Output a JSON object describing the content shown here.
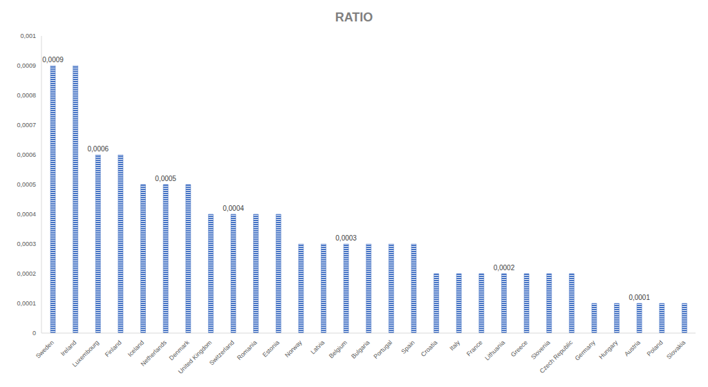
{
  "chart_data": {
    "type": "bar",
    "title": "RATIO",
    "categories": [
      "Sweden",
      "Ireland",
      "Luxembourg",
      "Finland",
      "Iceland",
      "Netherlands",
      "Denmark",
      "United Kingdom",
      "Switzerland",
      "Romania",
      "Estonia",
      "Norway",
      "Latvia",
      "Belgium",
      "Bulgaria",
      "Portugal",
      "Spain",
      "Croatia",
      "Italy",
      "France",
      "Lithuania",
      "Greece",
      "Slovenia",
      "Czech Republic",
      "Germany",
      "Hungary",
      "Austria",
      "Poland",
      "Slovakia"
    ],
    "values": [
      0.0009,
      0.0009,
      0.0006,
      0.0006,
      0.0005,
      0.0005,
      0.0005,
      0.0004,
      0.0004,
      0.0004,
      0.0004,
      0.0003,
      0.0003,
      0.0003,
      0.0003,
      0.0003,
      0.0003,
      0.0002,
      0.0002,
      0.0002,
      0.0002,
      0.0002,
      0.0002,
      0.0002,
      0.0001,
      0.0001,
      0.0001,
      0.0001,
      0.0001
    ],
    "value_labels": [
      "0,0009",
      null,
      "0,0006",
      null,
      null,
      "0,0005",
      null,
      null,
      "0,0004",
      null,
      null,
      null,
      null,
      "0,0003",
      null,
      null,
      null,
      null,
      null,
      null,
      "0,0002",
      null,
      null,
      null,
      null,
      null,
      "0,0001",
      null,
      null
    ],
    "data_labels": true,
    "color": "#4472c4",
    "ylim": [
      0,
      0.001
    ],
    "yticks": [
      0,
      {
        "value": 0.0001,
        "label": "0,0001"
      },
      {
        "value": 0.0002,
        "label": "0,0002"
      },
      {
        "value": 0.0003,
        "label": "0,0003"
      },
      {
        "value": 0.0004,
        "label": "0,0004"
      },
      {
        "value": 0.0005,
        "label": "0,0005"
      },
      {
        "value": 0.0006,
        "label": "0,0006"
      },
      {
        "value": 0.0007,
        "label": "0,0007"
      },
      {
        "value": 0.0008,
        "label": "0,0008"
      },
      {
        "value": 0.0009,
        "label": "0,0009"
      },
      {
        "value": 0.001,
        "label": "0,001"
      }
    ],
    "grid": false
  }
}
